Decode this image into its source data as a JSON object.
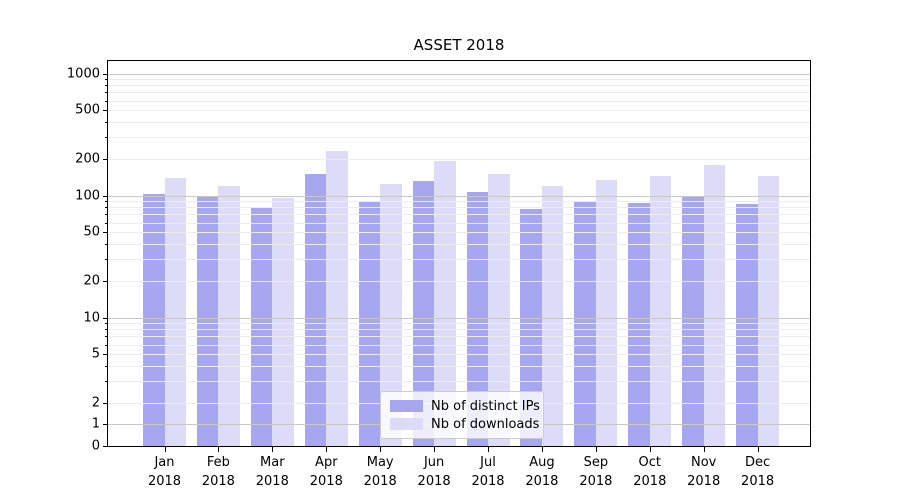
{
  "title": "ASSET 2018",
  "chart_data": {
    "type": "bar",
    "title": "ASSET 2018",
    "categories": [
      "Jan",
      "Feb",
      "Mar",
      "Apr",
      "May",
      "Jun",
      "Jul",
      "Aug",
      "Sep",
      "Oct",
      "Nov",
      "Dec"
    ],
    "year_label": "2018",
    "series": [
      {
        "name": "Nb of distinct IPs",
        "color": "#a6a6f1",
        "values": [
          103,
          97,
          79,
          150,
          90,
          132,
          106,
          78,
          91,
          87,
          100,
          86
        ]
      },
      {
        "name": "Nb of downloads",
        "color": "#dcdcf9",
        "values": [
          140,
          120,
          95,
          230,
          125,
          192,
          150,
          119,
          135,
          146,
          179,
          145
        ]
      }
    ],
    "yscale": "symlog",
    "yticks": [
      0,
      1,
      2,
      5,
      10,
      20,
      50,
      100,
      200,
      500,
      1000
    ],
    "ylim": [
      0,
      1300
    ],
    "xlabel": "",
    "ylabel": "",
    "grid": true,
    "legend_position": "lower center",
    "colors": {
      "major_grid": "#c8c8c8",
      "minor_grid": "#ededed",
      "axis": "#000000",
      "background": "#ffffff"
    }
  }
}
